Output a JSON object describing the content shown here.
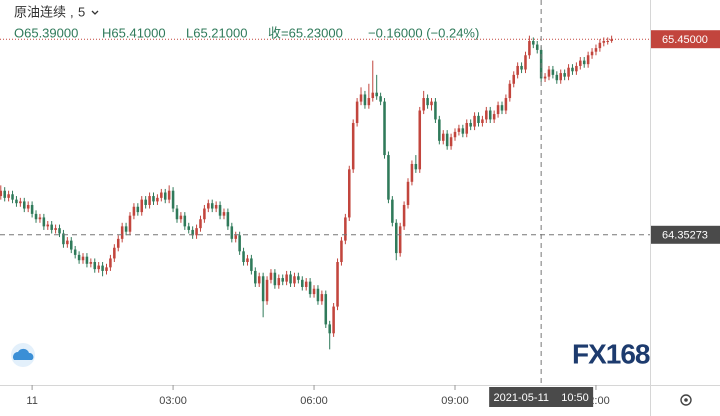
{
  "header": {
    "symbol": "原油连续",
    "interval": "5",
    "ohlc": [
      "O65.39000",
      "H65.41000",
      "L65.21000",
      "收=65.23000"
    ],
    "change": "−0.16000 (−0.24%)"
  },
  "logo": "FX168",
  "chart_data": {
    "type": "candlestick",
    "up_color": "#c2453d",
    "down_color": "#2f7a5a",
    "xlim": [
      -41,
      789
    ],
    "ylim": [
      63.51,
      65.67
    ],
    "xticks": [
      {
        "value": 0,
        "label": "11"
      },
      {
        "value": 180,
        "label": "03:00"
      },
      {
        "value": 360,
        "label": "06:00"
      },
      {
        "value": 540,
        "label": "09:00"
      },
      {
        "value": 720,
        "label": "12:00"
      }
    ],
    "last_price": {
      "value": 65.45,
      "label": "65.45000"
    },
    "crosshair": {
      "x": 650,
      "x_label": "2021-05-11    10:50",
      "y": 64.35273
    },
    "candles": [
      [
        -40,
        64.57,
        64.63,
        64.55,
        64.6
      ],
      [
        -35,
        64.6,
        64.62,
        64.54,
        64.56
      ],
      [
        -30,
        64.56,
        64.6,
        64.54,
        64.58
      ],
      [
        -25,
        64.58,
        64.6,
        64.53,
        64.55
      ],
      [
        -20,
        64.55,
        64.57,
        64.51,
        64.53
      ],
      [
        -15,
        64.53,
        64.56,
        64.51,
        64.54
      ],
      [
        -10,
        64.54,
        64.56,
        64.48,
        64.5
      ],
      [
        -5,
        64.5,
        64.54,
        64.48,
        64.52
      ],
      [
        0,
        64.52,
        64.54,
        64.45,
        64.47
      ],
      [
        5,
        64.47,
        64.49,
        64.42,
        64.44
      ],
      [
        10,
        64.44,
        64.47,
        64.42,
        64.45
      ],
      [
        15,
        64.45,
        64.47,
        64.38,
        64.4
      ],
      [
        20,
        64.4,
        64.43,
        64.38,
        64.41
      ],
      [
        25,
        64.41,
        64.43,
        64.36,
        64.38
      ],
      [
        30,
        64.38,
        64.41,
        64.36,
        64.39
      ],
      [
        35,
        64.39,
        64.41,
        64.34,
        64.36
      ],
      [
        40,
        64.36,
        64.38,
        64.28,
        64.3
      ],
      [
        45,
        64.3,
        64.34,
        64.28,
        64.32
      ],
      [
        50,
        64.32,
        64.34,
        64.25,
        64.27
      ],
      [
        55,
        64.27,
        64.29,
        64.22,
        64.24
      ],
      [
        60,
        64.24,
        64.26,
        64.19,
        64.21
      ],
      [
        65,
        64.21,
        64.25,
        64.19,
        64.23
      ],
      [
        70,
        64.23,
        64.25,
        64.17,
        64.19
      ],
      [
        75,
        64.19,
        64.22,
        64.17,
        64.2
      ],
      [
        80,
        64.2,
        64.22,
        64.14,
        64.16
      ],
      [
        85,
        64.16,
        64.2,
        64.14,
        64.18
      ],
      [
        90,
        64.18,
        64.2,
        64.12,
        64.15
      ],
      [
        95,
        64.15,
        64.19,
        64.13,
        64.17
      ],
      [
        100,
        64.17,
        64.24,
        64.15,
        64.22
      ],
      [
        105,
        64.22,
        64.3,
        64.2,
        64.28
      ],
      [
        110,
        64.28,
        64.35,
        64.26,
        64.33
      ],
      [
        115,
        64.33,
        64.42,
        64.31,
        64.4
      ],
      [
        120,
        64.4,
        64.42,
        64.35,
        64.37
      ],
      [
        125,
        64.37,
        64.48,
        64.35,
        64.46
      ],
      [
        130,
        64.46,
        64.53,
        64.44,
        64.51
      ],
      [
        135,
        64.51,
        64.53,
        64.46,
        64.48
      ],
      [
        140,
        64.48,
        64.57,
        64.46,
        64.55
      ],
      [
        145,
        64.55,
        64.57,
        64.5,
        64.52
      ],
      [
        150,
        64.52,
        64.59,
        64.5,
        64.57
      ],
      [
        155,
        64.57,
        64.59,
        64.52,
        64.54
      ],
      [
        160,
        64.54,
        64.58,
        64.52,
        64.56
      ],
      [
        165,
        64.56,
        64.61,
        64.54,
        64.59
      ],
      [
        170,
        64.59,
        64.61,
        64.53,
        64.55
      ],
      [
        175,
        64.55,
        64.63,
        64.53,
        64.6
      ],
      [
        180,
        64.6,
        64.62,
        64.48,
        64.5
      ],
      [
        185,
        64.5,
        64.52,
        64.42,
        64.44
      ],
      [
        190,
        64.44,
        64.48,
        64.42,
        64.46
      ],
      [
        195,
        64.46,
        64.48,
        64.38,
        64.4
      ],
      [
        200,
        64.4,
        64.42,
        64.36,
        64.38
      ],
      [
        205,
        64.38,
        64.4,
        64.33,
        64.35
      ],
      [
        210,
        64.35,
        64.41,
        64.33,
        64.39
      ],
      [
        215,
        64.39,
        64.46,
        64.37,
        64.44
      ],
      [
        220,
        64.44,
        64.52,
        64.42,
        64.5
      ],
      [
        225,
        64.5,
        64.55,
        64.48,
        64.53
      ],
      [
        230,
        64.53,
        64.55,
        64.48,
        64.5
      ],
      [
        235,
        64.5,
        64.54,
        64.48,
        64.52
      ],
      [
        240,
        64.52,
        64.54,
        64.44,
        64.46
      ],
      [
        245,
        64.46,
        64.5,
        64.44,
        64.48
      ],
      [
        250,
        64.48,
        64.5,
        64.38,
        64.4
      ],
      [
        255,
        64.4,
        64.42,
        64.31,
        64.33
      ],
      [
        260,
        64.33,
        64.37,
        64.31,
        64.35
      ],
      [
        265,
        64.35,
        64.37,
        64.24,
        64.26
      ],
      [
        270,
        64.26,
        64.28,
        64.18,
        64.2
      ],
      [
        275,
        64.2,
        64.24,
        64.18,
        64.22
      ],
      [
        280,
        64.22,
        64.24,
        64.13,
        64.15
      ],
      [
        285,
        64.15,
        64.17,
        64.06,
        64.08
      ],
      [
        290,
        64.08,
        64.14,
        64.06,
        64.12
      ],
      [
        295,
        64.12,
        64.14,
        63.89,
        63.98
      ],
      [
        300,
        63.98,
        64.12,
        63.96,
        64.1
      ],
      [
        305,
        64.1,
        64.16,
        64.08,
        64.14
      ],
      [
        310,
        64.14,
        64.16,
        64.05,
        64.07
      ],
      [
        315,
        64.07,
        64.13,
        64.05,
        64.11
      ],
      [
        320,
        64.11,
        64.13,
        64.07,
        64.09
      ],
      [
        325,
        64.09,
        64.15,
        64.07,
        64.13
      ],
      [
        330,
        64.13,
        64.15,
        64.06,
        64.08
      ],
      [
        335,
        64.08,
        64.14,
        64.06,
        64.12
      ],
      [
        340,
        64.12,
        64.14,
        64.08,
        64.1
      ],
      [
        345,
        64.1,
        64.12,
        64.04,
        64.06
      ],
      [
        350,
        64.06,
        64.11,
        64.04,
        64.09
      ],
      [
        355,
        64.09,
        64.11,
        64.0,
        64.02
      ],
      [
        360,
        64.02,
        64.07,
        64.0,
        64.05
      ],
      [
        365,
        64.05,
        64.07,
        63.96,
        63.98
      ],
      [
        370,
        63.98,
        64.04,
        63.96,
        64.02
      ],
      [
        375,
        64.02,
        64.04,
        63.83,
        63.85
      ],
      [
        380,
        63.85,
        63.87,
        63.71,
        63.8
      ],
      [
        385,
        63.8,
        63.97,
        63.78,
        63.95
      ],
      [
        390,
        63.95,
        64.22,
        63.93,
        64.2
      ],
      [
        395,
        64.2,
        64.34,
        64.18,
        64.32
      ],
      [
        400,
        64.32,
        64.47,
        64.3,
        64.45
      ],
      [
        405,
        64.45,
        64.74,
        64.43,
        64.72
      ],
      [
        410,
        64.72,
        65.0,
        64.7,
        64.98
      ],
      [
        415,
        64.98,
        65.12,
        64.96,
        65.1
      ],
      [
        420,
        65.1,
        65.18,
        65.08,
        65.14
      ],
      [
        425,
        65.14,
        65.16,
        65.06,
        65.08
      ],
      [
        430,
        65.08,
        65.2,
        65.06,
        65.12
      ],
      [
        435,
        65.12,
        65.33,
        65.1,
        65.15
      ],
      [
        440,
        65.15,
        65.25,
        65.11,
        65.13
      ],
      [
        445,
        65.13,
        65.15,
        65.08,
        65.1
      ],
      [
        450,
        65.1,
        65.12,
        64.78,
        64.8
      ],
      [
        455,
        64.8,
        64.82,
        64.53,
        64.55
      ],
      [
        460,
        64.55,
        64.57,
        64.4,
        64.42
      ],
      [
        465,
        64.42,
        64.44,
        64.21,
        64.25
      ],
      [
        470,
        64.25,
        64.42,
        64.23,
        64.4
      ],
      [
        475,
        64.4,
        64.54,
        64.38,
        64.52
      ],
      [
        480,
        64.52,
        64.67,
        64.5,
        64.65
      ],
      [
        485,
        64.65,
        64.77,
        64.63,
        64.75
      ],
      [
        490,
        64.75,
        64.8,
        64.7,
        64.72
      ],
      [
        495,
        64.72,
        65.07,
        64.7,
        65.05
      ],
      [
        500,
        65.05,
        65.16,
        65.03,
        65.12
      ],
      [
        505,
        65.12,
        65.14,
        65.06,
        65.08
      ],
      [
        510,
        65.08,
        65.12,
        65.05,
        65.1
      ],
      [
        515,
        65.1,
        65.12,
        64.98,
        65.0
      ],
      [
        520,
        65.0,
        65.02,
        64.86,
        64.88
      ],
      [
        525,
        64.88,
        64.94,
        64.86,
        64.92
      ],
      [
        530,
        64.92,
        64.94,
        64.83,
        64.85
      ],
      [
        535,
        64.85,
        64.92,
        64.83,
        64.9
      ],
      [
        540,
        64.9,
        64.95,
        64.88,
        64.93
      ],
      [
        545,
        64.93,
        64.97,
        64.91,
        64.95
      ],
      [
        550,
        64.95,
        64.97,
        64.9,
        64.92
      ],
      [
        555,
        64.92,
        65.0,
        64.9,
        64.98
      ],
      [
        560,
        64.98,
        65.0,
        64.94,
        64.96
      ],
      [
        565,
        64.96,
        65.04,
        64.94,
        65.02
      ],
      [
        570,
        65.02,
        65.04,
        64.96,
        64.98
      ],
      [
        575,
        64.98,
        65.02,
        64.96,
        65.0
      ],
      [
        580,
        65.0,
        65.07,
        64.98,
        65.05
      ],
      [
        585,
        65.05,
        65.07,
        64.98,
        65.0
      ],
      [
        590,
        65.0,
        65.05,
        64.98,
        65.03
      ],
      [
        595,
        65.03,
        65.1,
        65.01,
        65.08
      ],
      [
        600,
        65.08,
        65.1,
        65.03,
        65.05
      ],
      [
        605,
        65.05,
        65.14,
        65.03,
        65.12
      ],
      [
        610,
        65.12,
        65.22,
        65.1,
        65.2
      ],
      [
        615,
        65.2,
        65.27,
        65.18,
        65.25
      ],
      [
        620,
        65.25,
        65.32,
        65.23,
        65.3
      ],
      [
        625,
        65.3,
        65.32,
        65.26,
        65.28
      ],
      [
        630,
        65.28,
        65.38,
        65.26,
        65.36
      ],
      [
        635,
        65.36,
        65.47,
        65.34,
        65.44
      ],
      [
        640,
        65.44,
        65.46,
        65.4,
        65.42
      ],
      [
        645,
        65.42,
        65.44,
        65.37,
        65.39
      ],
      [
        650,
        65.39,
        65.41,
        65.21,
        65.23
      ],
      [
        655,
        65.23,
        65.26,
        65.21,
        65.24
      ],
      [
        660,
        65.24,
        65.3,
        65.22,
        65.28
      ],
      [
        665,
        65.28,
        65.3,
        65.23,
        65.25
      ],
      [
        670,
        65.25,
        65.27,
        65.2,
        65.22
      ],
      [
        675,
        65.22,
        65.28,
        65.2,
        65.26
      ],
      [
        680,
        65.26,
        65.28,
        65.22,
        65.24
      ],
      [
        685,
        65.24,
        65.31,
        65.22,
        65.29
      ],
      [
        690,
        65.29,
        65.31,
        65.25,
        65.27
      ],
      [
        695,
        65.27,
        65.32,
        65.25,
        65.3
      ],
      [
        700,
        65.3,
        65.35,
        65.28,
        65.33
      ],
      [
        705,
        65.33,
        65.35,
        65.29,
        65.31
      ],
      [
        710,
        65.31,
        65.38,
        65.29,
        65.36
      ],
      [
        715,
        65.36,
        65.4,
        65.34,
        65.38
      ],
      [
        720,
        65.38,
        65.42,
        65.36,
        65.4
      ],
      [
        725,
        65.4,
        65.45,
        65.38,
        65.43
      ],
      [
        730,
        65.43,
        65.46,
        65.41,
        65.44
      ],
      [
        735,
        65.44,
        65.46,
        65.42,
        65.44
      ],
      [
        740,
        65.44,
        65.47,
        65.43,
        65.45
      ]
    ]
  }
}
